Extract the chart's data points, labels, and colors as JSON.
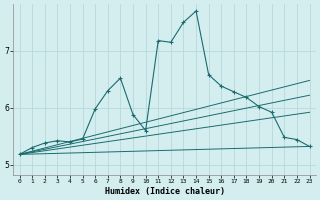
{
  "xlabel": "Humidex (Indice chaleur)",
  "ylabel": "",
  "background_color": "#d4eef0",
  "grid_color": "#b8d8dc",
  "line_color": "#1a6b6e",
  "xlim": [
    -0.5,
    23.5
  ],
  "ylim": [
    4.82,
    7.82
  ],
  "yticks": [
    5,
    6,
    7
  ],
  "xticks": [
    0,
    1,
    2,
    3,
    4,
    5,
    6,
    7,
    8,
    9,
    10,
    11,
    12,
    13,
    14,
    15,
    16,
    17,
    18,
    19,
    20,
    21,
    22,
    23
  ],
  "series": {
    "main": {
      "x": [
        0,
        1,
        2,
        3,
        4,
        5,
        6,
        7,
        8,
        9,
        10,
        11,
        12,
        13,
        14,
        15,
        16,
        17,
        18,
        19,
        20,
        21,
        22,
        23
      ],
      "y": [
        5.18,
        5.3,
        5.38,
        5.42,
        5.4,
        5.45,
        5.98,
        6.3,
        6.52,
        5.88,
        5.6,
        7.18,
        7.15,
        7.5,
        7.7,
        6.58,
        6.38,
        6.28,
        6.18,
        6.02,
        5.92,
        5.48,
        5.44,
        5.32
      ]
    },
    "line2": {
      "x": [
        0,
        23
      ],
      "y": [
        5.18,
        5.32
      ]
    },
    "line3": {
      "x": [
        0,
        23
      ],
      "y": [
        5.18,
        5.92
      ]
    },
    "line4": {
      "x": [
        0,
        23
      ],
      "y": [
        5.18,
        6.22
      ]
    },
    "line5": {
      "x": [
        0,
        23
      ],
      "y": [
        5.18,
        6.48
      ]
    }
  }
}
